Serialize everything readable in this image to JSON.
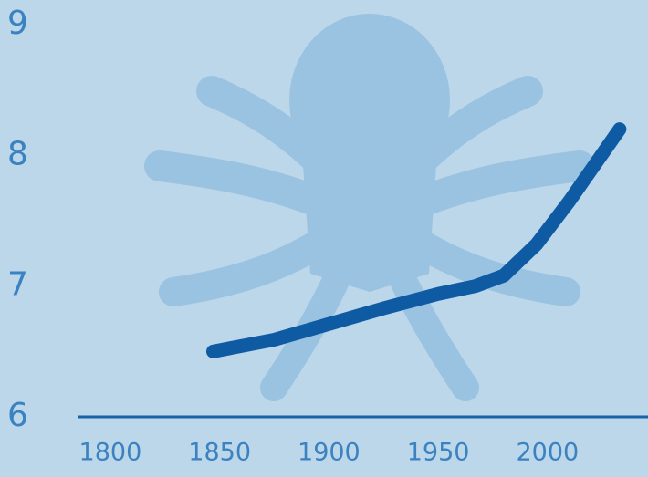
{
  "chart_data": {
    "type": "line",
    "x": [
      1847,
      1875,
      1900,
      1925,
      1950,
      1967,
      1980,
      1995,
      2010,
      2033
    ],
    "series": [
      {
        "color": "#0f5ba3",
        "values": [
          6.5,
          6.59,
          6.71,
          6.83,
          6.94,
          7.0,
          7.08,
          7.32,
          7.65,
          8.2
        ]
      }
    ],
    "xlim": [
      1785,
      2046
    ],
    "xticks": [
      1800,
      1850,
      1900,
      1950,
      2000
    ],
    "ylim": [
      6,
      9
    ],
    "yticks": [
      6,
      7,
      8,
      9
    ],
    "grid": false
  }
}
